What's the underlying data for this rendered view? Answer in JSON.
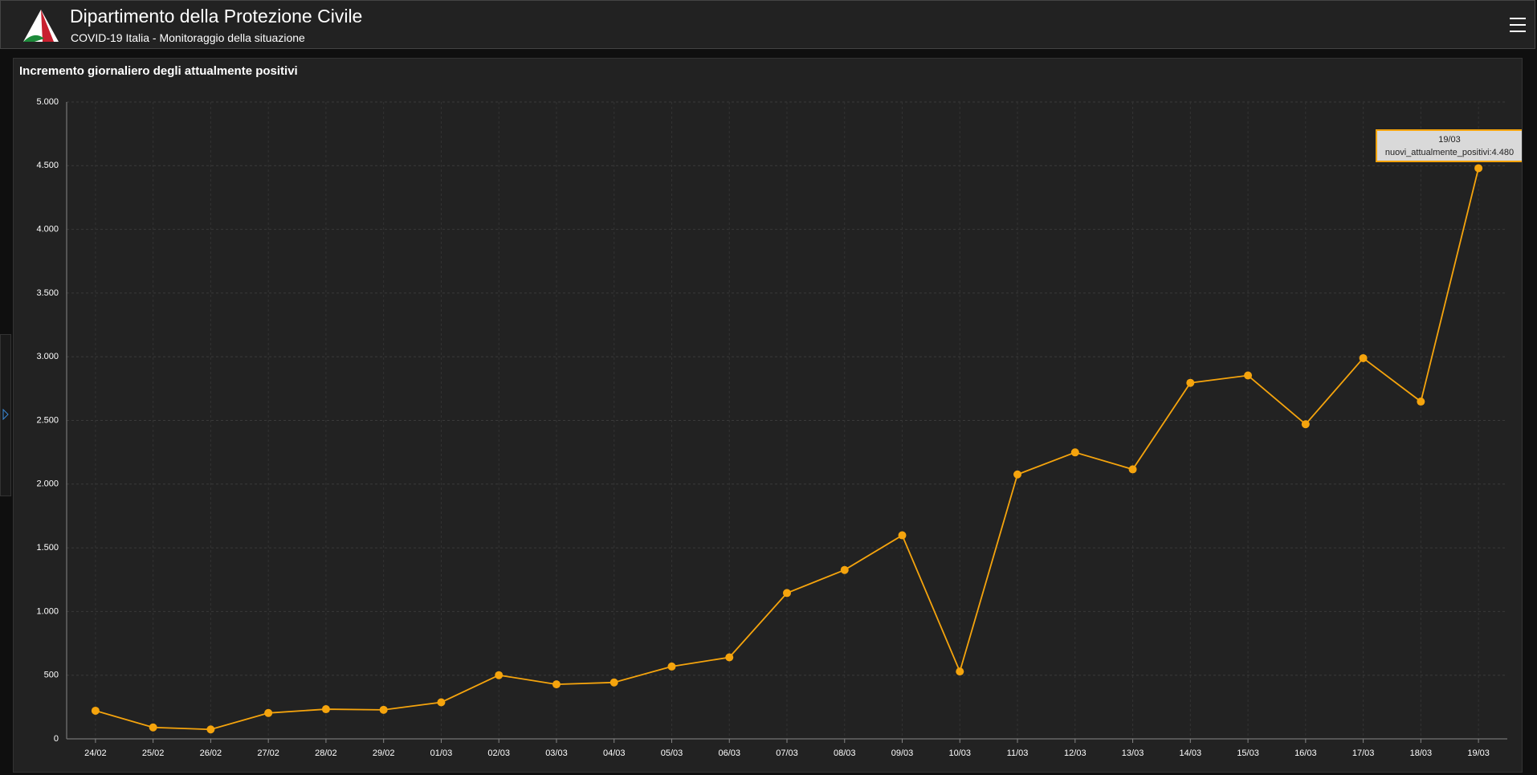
{
  "header": {
    "title": "Dipartimento della Protezione Civile",
    "subtitle": "COVID-19 Italia - Monitoraggio della situazione"
  },
  "chart_data": {
    "type": "line",
    "title": "Incremento giornaliero degli attualmente positivi",
    "categories": [
      "24/02",
      "25/02",
      "26/02",
      "27/02",
      "28/02",
      "29/02",
      "01/03",
      "02/03",
      "03/03",
      "04/03",
      "05/03",
      "06/03",
      "07/03",
      "08/03",
      "09/03",
      "10/03",
      "11/03",
      "12/03",
      "13/03",
      "14/03",
      "15/03",
      "16/03",
      "17/03",
      "18/03",
      "19/03"
    ],
    "series": [
      {
        "name": "nuovi_attualmente_positivi",
        "color": "#f5a40d",
        "values": [
          221,
          90,
          74,
          203,
          233,
          228,
          287,
          500,
          428,
          443,
          568,
          640,
          1145,
          1326,
          1598,
          529,
          2076,
          2249,
          2116,
          2795,
          2853,
          2470,
          2989,
          2648,
          4480
        ]
      }
    ],
    "ylim": [
      0,
      5000
    ],
    "yticks": [
      0,
      500,
      {
        "value": 1000,
        "label": "1.000"
      },
      {
        "value": 1500,
        "label": "1.500"
      },
      {
        "value": 2000,
        "label": "2.000"
      },
      {
        "value": 2500,
        "label": "2.500"
      },
      {
        "value": 3000,
        "label": "3.000"
      },
      {
        "value": 3500,
        "label": "3.500"
      },
      {
        "value": 4000,
        "label": "4.000"
      },
      {
        "value": 4500,
        "label": "4.500"
      },
      {
        "value": 5000,
        "label": "5.000"
      }
    ],
    "grid": true,
    "tooltip": {
      "title": "19/03",
      "text": "nuovi_attualmente_positivi:4.480"
    }
  }
}
